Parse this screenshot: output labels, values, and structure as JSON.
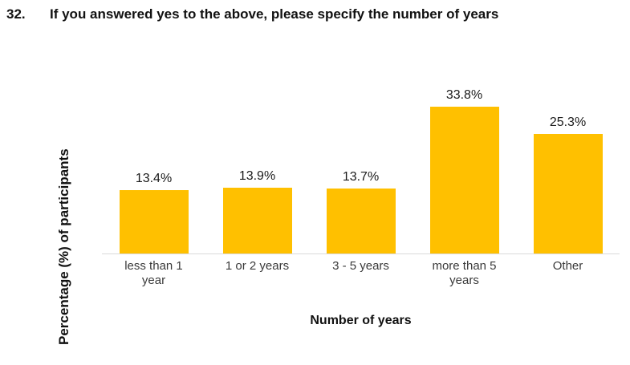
{
  "question": {
    "number": "32.",
    "title": "If you answered yes to the above, please specify the number of years"
  },
  "chart_data": {
    "type": "bar",
    "categories": [
      "less than 1 year",
      "1 or 2 years",
      "3 - 5 years",
      "more than 5 years",
      "Other"
    ],
    "values": [
      13.4,
      13.9,
      13.7,
      33.8,
      25.3
    ],
    "value_labels": [
      "13.4%",
      "13.9%",
      "13.7%",
      "33.8%",
      "25.3%"
    ],
    "title": "",
    "xlabel": "Number of years",
    "ylabel": "Percentage (%) of participants",
    "ylim": [
      0,
      35
    ],
    "grid": false,
    "legend": false,
    "data_labels_position": "above-bars",
    "bar_color": "#FFC000",
    "axis_line_color": "#D9D9D9",
    "text_color": "#111111"
  }
}
